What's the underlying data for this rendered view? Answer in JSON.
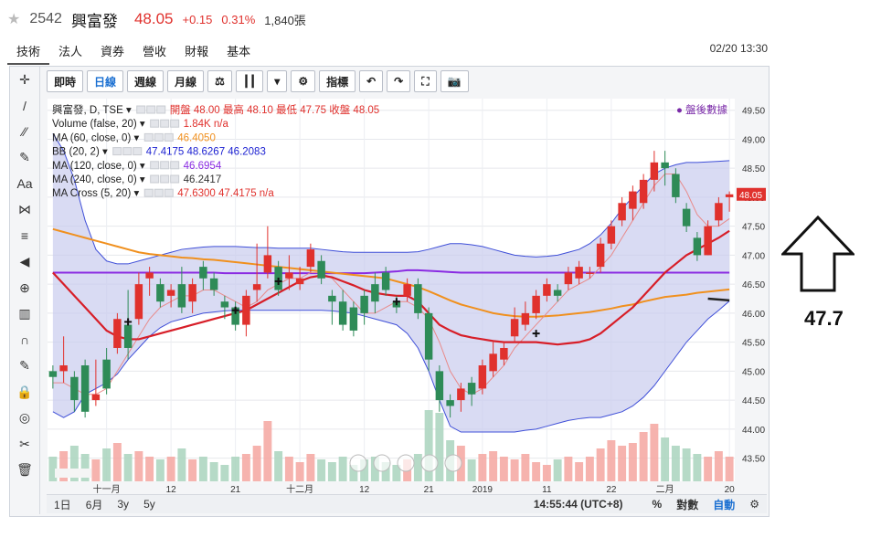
{
  "header": {
    "code": "2542",
    "name": "興富發",
    "price": "48.05",
    "change": "+0.15",
    "change_pct": "0.31%",
    "volume": "1,840張"
  },
  "tabs": [
    "技術",
    "法人",
    "資券",
    "營收",
    "財報",
    "基本"
  ],
  "timestamp": "02/20 13:30",
  "toolbar": {
    "items": [
      "即時",
      "日線",
      "週線",
      "月線",
      "⚖",
      "┃┃",
      "▾",
      "⚙",
      "指標",
      "↶",
      "↷",
      "⛶",
      "📷"
    ],
    "selected": "日線"
  },
  "sidebar_icons": [
    "crosshair-icon",
    "line-icon",
    "fork-icon",
    "brush-icon",
    "text-icon",
    "pattern-icon",
    "fib-icon",
    "arrow-left-icon",
    "zoom-icon",
    "ruler-icon",
    "magnet-icon",
    "pencil-lock-icon",
    "lock-icon",
    "eye-icon",
    "tools-icon",
    "trash-icon"
  ],
  "sidebar_labels": [
    "✛",
    "/",
    "⁄⁄",
    "✎",
    "Aa",
    "⋈",
    "≡",
    "◀",
    "⊕",
    "▥",
    "∩",
    "✎",
    "🔒",
    "◎",
    "✂",
    "🗑"
  ],
  "legend": [
    {
      "label": "興富發, D, TSE",
      "extra": "開盤 48.00 最高 48.10 最低 47.75 收盤 48.05"
    },
    {
      "label": "Volume (false, 20)",
      "extra": "1.84K n/a"
    },
    {
      "label": "MA (60, close, 0)",
      "extra": "46.4050"
    },
    {
      "label": "BB (20, 2)",
      "extra": "47.4175 48.6267 46.2083"
    },
    {
      "label": "MA (120, close, 0)",
      "extra": "46.6954"
    },
    {
      "label": "MA (240, close, 0)",
      "extra": "46.2417"
    },
    {
      "label": "MA Cross (5, 20)",
      "extra": "47.6300 47.4175 n/a"
    }
  ],
  "after_hours": "● 盤後數據",
  "bottom": {
    "ranges": [
      "1日",
      "6月",
      "3y",
      "5y"
    ],
    "time": "14:55:44 (UTC+8)",
    "pct": "%",
    "log": "對數",
    "auto": "自動",
    "gear": "⚙"
  },
  "annotation_value": "47.7",
  "colors": {
    "up": "#e0312d",
    "down": "#2e8b57",
    "ma60": "#f0901e",
    "ma120": "#8a2be2",
    "bb_mid": "#d71e28",
    "bb_band": "#3f4fd8",
    "bb_fill": "#c9ccee",
    "ma_cross": "#e88a8a",
    "vol_up": "#f5a6a0",
    "vol_down": "#a9d3bd"
  },
  "chart_data": {
    "type": "candlestick",
    "y_ticks": [
      43.5,
      44,
      44.5,
      45,
      45.5,
      46,
      46.5,
      47,
      47.5,
      48,
      48.5,
      49,
      49.5
    ],
    "ylim": [
      43.1,
      49.7
    ],
    "last_price_label": "48.05",
    "x_labels": [
      {
        "i": 5,
        "t": "十一月"
      },
      {
        "i": 11,
        "t": "12"
      },
      {
        "i": 17,
        "t": "21"
      },
      {
        "i": 23,
        "t": "十二月"
      },
      {
        "i": 29,
        "t": "12"
      },
      {
        "i": 35,
        "t": "21"
      },
      {
        "i": 40,
        "t": "2019"
      },
      {
        "i": 46,
        "t": "11"
      },
      {
        "i": 52,
        "t": "22"
      },
      {
        "i": 57,
        "t": "二月"
      },
      {
        "i": 63,
        "t": "20"
      }
    ],
    "ohlc": [
      [
        45.0,
        45.1,
        44.7,
        44.9
      ],
      [
        45.0,
        45.6,
        44.8,
        45.1
      ],
      [
        44.9,
        45.0,
        44.3,
        44.5
      ],
      [
        45.1,
        45.2,
        44.2,
        44.3
      ],
      [
        44.5,
        45.2,
        44.4,
        44.6
      ],
      [
        45.2,
        45.4,
        44.6,
        44.7
      ],
      [
        45.4,
        46.0,
        45.3,
        45.9
      ],
      [
        45.8,
        46.4,
        45.2,
        45.4
      ],
      [
        45.9,
        46.7,
        45.8,
        46.5
      ],
      [
        46.6,
        46.8,
        46.3,
        46.7
      ],
      [
        46.5,
        46.6,
        46.1,
        46.2
      ],
      [
        46.3,
        46.5,
        46.1,
        46.4
      ],
      [
        46.5,
        46.8,
        46.0,
        46.1
      ],
      [
        46.2,
        46.6,
        46.0,
        46.5
      ],
      [
        46.8,
        46.9,
        46.4,
        46.6
      ],
      [
        46.6,
        46.7,
        46.3,
        46.4
      ],
      [
        46.2,
        46.3,
        45.9,
        46.1
      ],
      [
        46.1,
        46.2,
        45.7,
        45.8
      ],
      [
        45.8,
        46.4,
        45.6,
        46.3
      ],
      [
        46.4,
        47.2,
        46.2,
        46.5
      ],
      [
        46.7,
        47.5,
        46.6,
        47.0
      ],
      [
        46.8,
        46.9,
        46.3,
        46.4
      ],
      [
        46.6,
        47.0,
        46.4,
        46.7
      ],
      [
        46.5,
        46.8,
        46.4,
        46.6
      ],
      [
        46.8,
        47.2,
        46.7,
        47.1
      ],
      [
        46.9,
        47.0,
        46.5,
        46.6
      ],
      [
        46.3,
        46.4,
        45.8,
        46.2
      ],
      [
        46.2,
        46.4,
        45.7,
        45.8
      ],
      [
        46.1,
        46.2,
        45.6,
        45.7
      ],
      [
        46.3,
        46.4,
        45.8,
        46.0
      ],
      [
        46.5,
        46.7,
        46.0,
        46.2
      ],
      [
        46.7,
        46.8,
        46.3,
        46.4
      ],
      [
        46.2,
        46.3,
        46.0,
        46.1
      ],
      [
        46.3,
        46.6,
        46.2,
        46.5
      ],
      [
        46.5,
        46.6,
        45.9,
        46.0
      ],
      [
        46.0,
        46.1,
        45.0,
        45.2
      ],
      [
        45.0,
        45.1,
        44.3,
        44.5
      ],
      [
        44.5,
        44.6,
        44.2,
        44.4
      ],
      [
        44.5,
        44.8,
        44.3,
        44.7
      ],
      [
        44.8,
        44.9,
        44.4,
        44.6
      ],
      [
        44.7,
        45.2,
        44.6,
        45.1
      ],
      [
        45.0,
        45.5,
        44.9,
        45.3
      ],
      [
        45.2,
        45.5,
        45.1,
        45.4
      ],
      [
        45.6,
        46.1,
        45.5,
        45.9
      ],
      [
        45.8,
        46.2,
        45.7,
        46.0
      ],
      [
        46.0,
        46.4,
        45.9,
        46.3
      ],
      [
        46.3,
        46.6,
        46.2,
        46.5
      ],
      [
        46.4,
        46.5,
        46.2,
        46.3
      ],
      [
        46.5,
        46.8,
        46.4,
        46.7
      ],
      [
        46.6,
        46.9,
        46.5,
        46.8
      ],
      [
        46.7,
        46.8,
        46.6,
        46.7
      ],
      [
        46.8,
        47.3,
        46.7,
        47.2
      ],
      [
        47.2,
        47.6,
        47.1,
        47.5
      ],
      [
        47.6,
        48.0,
        47.5,
        47.9
      ],
      [
        47.8,
        48.2,
        47.6,
        48.1
      ],
      [
        47.9,
        48.4,
        47.8,
        48.3
      ],
      [
        48.3,
        48.8,
        48.1,
        48.6
      ],
      [
        48.6,
        48.8,
        48.2,
        48.5
      ],
      [
        48.4,
        48.5,
        47.9,
        48.0
      ],
      [
        47.8,
        47.9,
        47.4,
        47.5
      ],
      [
        47.3,
        47.4,
        46.9,
        47.0
      ],
      [
        47.0,
        47.6,
        47.0,
        47.5
      ],
      [
        47.6,
        48.0,
        47.5,
        47.9
      ],
      [
        48.0,
        48.1,
        47.75,
        48.05
      ]
    ],
    "volume": [
      0.9,
      1.1,
      1.3,
      1.0,
      0.8,
      1.2,
      1.4,
      1.0,
      1.1,
      0.9,
      0.8,
      0.9,
      1.2,
      0.8,
      0.9,
      0.7,
      0.6,
      0.9,
      1.0,
      1.3,
      2.2,
      1.1,
      0.9,
      0.7,
      1.0,
      0.8,
      0.7,
      0.9,
      0.6,
      0.8,
      0.9,
      0.7,
      0.6,
      0.8,
      1.0,
      2.6,
      2.5,
      1.5,
      1.3,
      0.8,
      1.0,
      1.1,
      0.9,
      0.8,
      1.0,
      0.7,
      0.6,
      0.8,
      0.9,
      0.7,
      0.9,
      1.2,
      1.5,
      1.3,
      1.4,
      1.8,
      2.1,
      1.6,
      1.3,
      1.2,
      1.0,
      0.9,
      1.1,
      0.9
    ],
    "volume_max": 3.0,
    "ma60": [
      47.45,
      47.4,
      47.35,
      47.3,
      47.25,
      47.2,
      47.15,
      47.1,
      47.05,
      47.02,
      47.0,
      46.98,
      46.96,
      46.95,
      46.93,
      46.92,
      46.9,
      46.88,
      46.86,
      46.84,
      46.82,
      46.8,
      46.78,
      46.76,
      46.74,
      46.72,
      46.7,
      46.68,
      46.66,
      46.64,
      46.62,
      46.6,
      46.55,
      46.5,
      46.45,
      46.38,
      46.3,
      46.22,
      46.15,
      46.1,
      46.05,
      46.0,
      45.97,
      45.95,
      45.94,
      45.94,
      45.95,
      45.96,
      45.98,
      46.0,
      46.02,
      46.05,
      46.08,
      46.12,
      46.15,
      46.2,
      46.24,
      46.28,
      46.3,
      46.32,
      46.35,
      46.37,
      46.39,
      46.41
    ],
    "ma120": [
      46.7,
      46.7,
      46.7,
      46.7,
      46.7,
      46.7,
      46.7,
      46.7,
      46.7,
      46.7,
      46.7,
      46.7,
      46.7,
      46.7,
      46.7,
      46.7,
      46.69,
      46.69,
      46.69,
      46.69,
      46.69,
      46.69,
      46.69,
      46.69,
      46.69,
      46.69,
      46.69,
      46.69,
      46.69,
      46.69,
      46.7,
      46.71,
      46.72,
      46.74,
      46.74,
      46.73,
      46.72,
      46.71,
      46.7,
      46.7,
      46.7,
      46.7,
      46.7,
      46.7,
      46.7,
      46.7,
      46.7,
      46.7,
      46.7,
      46.7,
      46.7,
      46.7,
      46.7,
      46.7,
      46.7,
      46.7,
      46.7,
      46.7,
      46.7,
      46.7,
      46.7,
      46.7,
      46.7,
      46.7
    ],
    "bb_mid": [
      46.7,
      46.5,
      46.3,
      46.1,
      45.9,
      45.7,
      45.6,
      45.55,
      45.55,
      45.6,
      45.65,
      45.7,
      45.75,
      45.8,
      45.85,
      45.9,
      45.95,
      46.0,
      46.05,
      46.15,
      46.25,
      46.35,
      46.45,
      46.55,
      46.62,
      46.65,
      46.62,
      46.55,
      46.48,
      46.4,
      46.35,
      46.32,
      46.3,
      46.3,
      46.2,
      46.0,
      45.8,
      45.7,
      45.62,
      45.58,
      45.55,
      45.52,
      45.5,
      45.5,
      45.5,
      45.5,
      45.48,
      45.46,
      45.48,
      45.5,
      45.55,
      45.65,
      45.8,
      45.95,
      46.1,
      46.3,
      46.5,
      46.7,
      46.85,
      47.0,
      47.1,
      47.2,
      47.3,
      47.42
    ],
    "bb_upper": [
      49.1,
      48.8,
      48.3,
      47.6,
      47.1,
      46.9,
      46.85,
      46.85,
      46.9,
      46.95,
      47.0,
      47.05,
      47.1,
      47.12,
      47.14,
      47.15,
      47.15,
      47.15,
      47.14,
      47.13,
      47.13,
      47.12,
      47.12,
      47.12,
      47.12,
      47.1,
      47.08,
      47.06,
      47.05,
      47.05,
      47.05,
      47.05,
      47.05,
      47.05,
      47.06,
      47.1,
      47.15,
      47.2,
      47.2,
      47.18,
      47.15,
      47.1,
      47.05,
      47.0,
      46.98,
      46.97,
      46.98,
      47.0,
      47.05,
      47.1,
      47.2,
      47.35,
      47.55,
      47.8,
      48.0,
      48.2,
      48.4,
      48.5,
      48.56,
      48.6,
      48.6,
      48.61,
      48.62,
      48.63
    ],
    "bb_lower": [
      44.3,
      44.2,
      44.3,
      44.6,
      44.7,
      44.8,
      44.95,
      45.2,
      45.4,
      45.6,
      45.75,
      45.85,
      45.9,
      45.95,
      46.0,
      46.02,
      46.04,
      46.05,
      46.05,
      46.05,
      46.05,
      46.05,
      46.05,
      46.05,
      46.05,
      46.05,
      46.04,
      46.02,
      46.0,
      45.95,
      45.9,
      45.85,
      45.8,
      45.65,
      45.4,
      45.0,
      44.5,
      44.05,
      43.95,
      43.95,
      43.95,
      43.95,
      43.95,
      43.95,
      43.98,
      44.0,
      44.05,
      44.1,
      44.15,
      44.18,
      44.2,
      44.2,
      44.25,
      44.3,
      44.4,
      44.55,
      44.75,
      45.0,
      45.25,
      45.5,
      45.7,
      45.9,
      46.05,
      46.21
    ],
    "ma_cross": [
      44.8,
      44.8,
      44.7,
      44.6,
      44.6,
      44.7,
      45.0,
      45.3,
      45.6,
      45.9,
      46.1,
      46.2,
      46.3,
      46.3,
      46.4,
      46.4,
      46.3,
      46.2,
      46.1,
      46.2,
      46.4,
      46.5,
      46.6,
      46.6,
      46.7,
      46.7,
      46.6,
      46.4,
      46.2,
      46.0,
      46.0,
      46.1,
      46.2,
      46.2,
      46.1,
      45.9,
      45.5,
      45.0,
      44.7,
      44.6,
      44.7,
      44.9,
      45.1,
      45.4,
      45.6,
      45.8,
      46.0,
      46.2,
      46.4,
      46.5,
      46.6,
      46.8,
      47.0,
      47.3,
      47.6,
      47.9,
      48.2,
      48.4,
      48.4,
      48.1,
      47.7,
      47.5,
      47.5,
      47.63
    ],
    "cross_markers": [
      {
        "i": 7,
        "p": 45.85
      },
      {
        "i": 17,
        "p": 46.05
      },
      {
        "i": 21,
        "p": 46.55
      },
      {
        "i": 32,
        "p": 46.2
      },
      {
        "i": 45,
        "p": 45.65
      }
    ]
  }
}
